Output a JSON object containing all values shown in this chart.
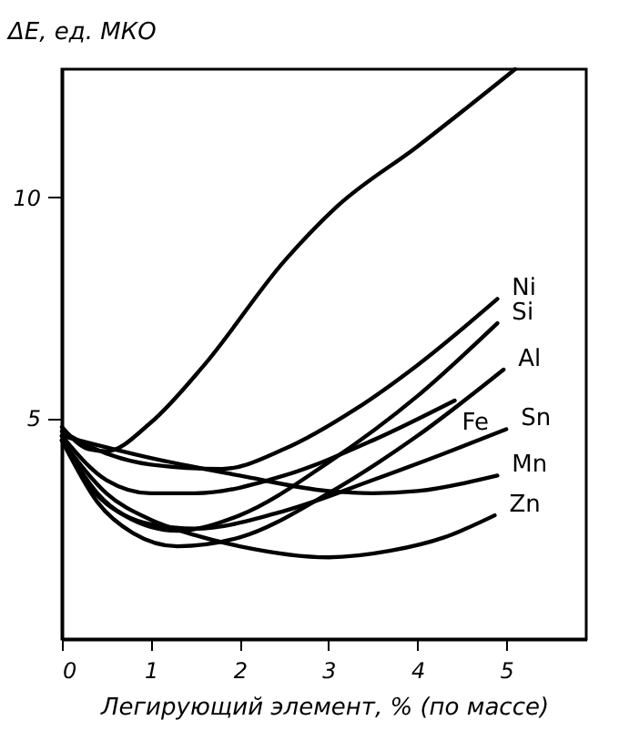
{
  "chart_data": {
    "type": "line",
    "xlabel": "Легирующий элемент, % (по массе)",
    "ylabel": "ΔЕ, ед. МКО",
    "xlim": [
      0,
      5.9
    ],
    "ylim": [
      0,
      12.9
    ],
    "xticks": [
      0,
      1,
      2,
      3,
      4,
      5
    ],
    "yticks": [
      5,
      10
    ],
    "grid": false,
    "legend": false,
    "marker": "none",
    "line_style": "solid",
    "series": [
      {
        "color": "#000000",
        "x": [
          0,
          0.3,
          0.5,
          1,
          1.6,
          2.5,
          3.1,
          4,
          5.1
        ],
        "values": [
          4.8,
          4.3,
          4.25,
          4.9,
          6.2,
          8.55,
          9.8,
          11.15,
          12.9
        ]
      },
      {
        "name": "Ni",
        "color": "#000000",
        "x": [
          0,
          0.5,
          1,
          1.8,
          2.5,
          3.3,
          4,
          4.9
        ],
        "values": [
          4.7,
          4.2,
          3.95,
          3.85,
          4.3,
          5.2,
          6.2,
          7.7
        ]
      },
      {
        "name": "Si",
        "color": "#000000",
        "x": [
          0,
          0.3,
          0.7,
          1.3,
          2,
          3,
          4,
          4.9
        ],
        "values": [
          4.6,
          3.5,
          2.8,
          2.45,
          2.8,
          4.0,
          5.5,
          7.15
        ]
      },
      {
        "name": "Al",
        "color": "#000000",
        "x": [
          0,
          0.4,
          0.8,
          1.3,
          2,
          3,
          4,
          4.97
        ],
        "values": [
          4.5,
          3.1,
          2.4,
          2.1,
          2.3,
          3.3,
          4.6,
          6.1
        ]
      },
      {
        "name": "Fe",
        "color": "#000000",
        "x": [
          0,
          0.5,
          1,
          1.5,
          2.5,
          3.5,
          4.42
        ],
        "values": [
          4.6,
          3.6,
          3.3,
          3.3,
          3.7,
          4.5,
          5.4
        ]
      },
      {
        "name": "Sn",
        "color": "#000000",
        "x": [
          0,
          0.4,
          1,
          1.5,
          2.5,
          3.5,
          4.3,
          5
        ],
        "values": [
          4.5,
          3.3,
          2.6,
          2.5,
          2.9,
          3.6,
          4.2,
          4.75
        ]
      },
      {
        "name": "Mn",
        "color": "#000000",
        "x": [
          0,
          1,
          2,
          3,
          3.5,
          4,
          4.9
        ],
        "values": [
          4.6,
          4.1,
          3.7,
          3.35,
          3.3,
          3.35,
          3.7
        ]
      },
      {
        "name": "Zn",
        "color": "#000000",
        "x": [
          0,
          0.5,
          1,
          1.5,
          2,
          3,
          3.7,
          4.3,
          4.87
        ],
        "values": [
          4.5,
          3.3,
          2.7,
          2.35,
          2.1,
          1.85,
          2.0,
          2.3,
          2.8
        ]
      }
    ]
  }
}
